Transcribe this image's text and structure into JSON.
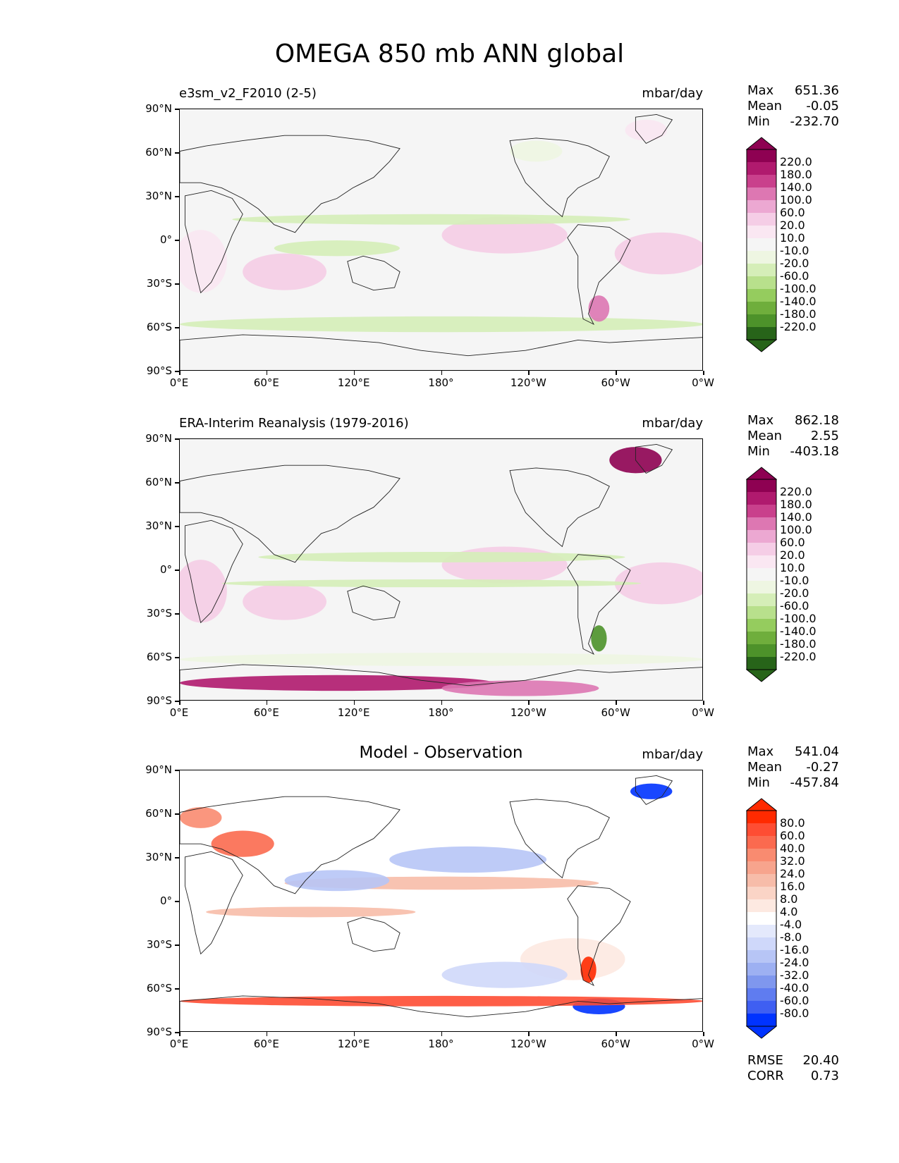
{
  "title": "OMEGA 850 mb ANN global",
  "y_ticks": [
    "90°N",
    "60°N",
    "30°N",
    "0°",
    "30°S",
    "60°S",
    "90°S"
  ],
  "x_ticks": [
    "0°E",
    "60°E",
    "120°E",
    "180°",
    "120°W",
    "60°W",
    "0°W"
  ],
  "panels": [
    {
      "left_title": "e3sm_v2_F2010 (2-5)",
      "center_title": "",
      "units": "mbar/day",
      "stats": {
        "max_label": "Max",
        "max": "651.36",
        "mean_label": "Mean",
        "mean": "-0.05",
        "min_label": "Min",
        "min": "-232.70"
      },
      "colorbar": {
        "levels": [
          "220.0",
          "180.0",
          "140.0",
          "100.0",
          "60.0",
          "20.0",
          "10.0",
          "-10.0",
          "-20.0",
          "-60.0",
          "-100.0",
          "-140.0",
          "-180.0",
          "-220.0"
        ],
        "colors": [
          "#8e0152",
          "#b01a6e",
          "#c9408c",
          "#dd77b2",
          "#eca8d2",
          "#f5cde6",
          "#fae7f2",
          "#f5f5f5",
          "#eef6e2",
          "#d5eeb8",
          "#b8e08c",
          "#95cc5e",
          "#6fae3c",
          "#4d922a",
          "#276419"
        ]
      }
    },
    {
      "left_title": "ERA-Interim Reanalysis (1979-2016)",
      "center_title": "",
      "units": "mbar/day",
      "stats": {
        "max_label": "Max",
        "max": "862.18",
        "mean_label": "Mean",
        "mean": "2.55",
        "min_label": "Min",
        "min": "-403.18"
      },
      "colorbar": {
        "levels": [
          "220.0",
          "180.0",
          "140.0",
          "100.0",
          "60.0",
          "20.0",
          "10.0",
          "-10.0",
          "-20.0",
          "-60.0",
          "-100.0",
          "-140.0",
          "-180.0",
          "-220.0"
        ],
        "colors": [
          "#8e0152",
          "#b01a6e",
          "#c9408c",
          "#dd77b2",
          "#eca8d2",
          "#f5cde6",
          "#fae7f2",
          "#f5f5f5",
          "#eef6e2",
          "#d5eeb8",
          "#b8e08c",
          "#95cc5e",
          "#6fae3c",
          "#4d922a",
          "#276419"
        ]
      }
    },
    {
      "left_title": "",
      "center_title": "Model - Observation",
      "units": "mbar/day",
      "stats": {
        "max_label": "Max",
        "max": "541.04",
        "mean_label": "Mean",
        "mean": "-0.27",
        "min_label": "Min",
        "min": "-457.84"
      },
      "metrics": {
        "rmse_label": "RMSE",
        "rmse": "20.40",
        "corr_label": "CORR",
        "corr": "0.73"
      },
      "colorbar": {
        "levels": [
          "80.0",
          "60.0",
          "40.0",
          "32.0",
          "24.0",
          "16.0",
          "8.0",
          "4.0",
          "-4.0",
          "-8.0",
          "-16.0",
          "-24.0",
          "-32.0",
          "-40.0",
          "-60.0",
          "-80.0"
        ],
        "colors": [
          "#ff2a00",
          "#fe4d33",
          "#fb6a4f",
          "#f98b70",
          "#f7a48d",
          "#f7bca9",
          "#fad4c6",
          "#fde9e1",
          "#ffffff",
          "#e4e9fc",
          "#cfd8fa",
          "#b7c5f6",
          "#9db0f2",
          "#7f97ee",
          "#5f7cf0",
          "#3f5ff2",
          "#0033ff"
        ]
      }
    }
  ],
  "chart_data": [
    {
      "type": "heatmap",
      "title": "e3sm_v2_F2010 (2-5)",
      "units": "mbar/day",
      "xlabel": "",
      "ylabel": "",
      "x_range": [
        "0°E",
        "0°W"
      ],
      "y_range": [
        "90°S",
        "90°N"
      ],
      "stats": {
        "max": 651.36,
        "mean": -0.05,
        "min": -232.7
      },
      "contour_levels": [
        -220,
        -180,
        -140,
        -100,
        -60,
        -20,
        -10,
        10,
        20,
        60,
        100,
        140,
        180,
        220
      ],
      "colormap": "PiYG_r"
    },
    {
      "type": "heatmap",
      "title": "ERA-Interim Reanalysis (1979-2016)",
      "units": "mbar/day",
      "xlabel": "",
      "ylabel": "",
      "x_range": [
        "0°E",
        "0°W"
      ],
      "y_range": [
        "90°S",
        "90°N"
      ],
      "stats": {
        "max": 862.18,
        "mean": 2.55,
        "min": -403.18
      },
      "contour_levels": [
        -220,
        -180,
        -140,
        -100,
        -60,
        -20,
        -10,
        10,
        20,
        60,
        100,
        140,
        180,
        220
      ],
      "colormap": "PiYG_r"
    },
    {
      "type": "heatmap",
      "title": "Model - Observation",
      "units": "mbar/day",
      "xlabel": "",
      "ylabel": "",
      "x_range": [
        "0°E",
        "0°W"
      ],
      "y_range": [
        "90°S",
        "90°N"
      ],
      "stats": {
        "max": 541.04,
        "mean": -0.27,
        "min": -457.84
      },
      "metrics": {
        "rmse": 20.4,
        "corr": 0.73
      },
      "contour_levels": [
        -80,
        -60,
        -40,
        -32,
        -24,
        -16,
        -8,
        -4,
        4,
        8,
        16,
        24,
        32,
        40,
        60,
        80
      ],
      "colormap": "bwr"
    }
  ]
}
